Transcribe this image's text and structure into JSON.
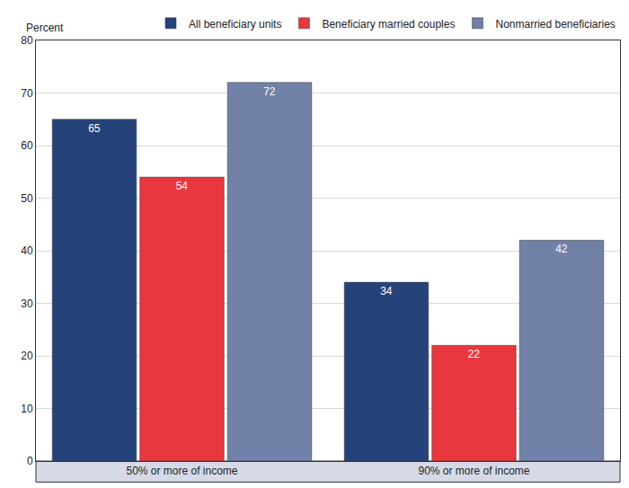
{
  "chart_data": {
    "type": "bar",
    "y_label": "Percent",
    "categories": [
      "50% or more of income",
      "90% or more of income"
    ],
    "series": [
      {
        "name": "All beneficiary units",
        "color": "#25437a",
        "values": [
          65,
          34
        ]
      },
      {
        "name": "Beneficiary married couples",
        "color": "#e8373f",
        "values": [
          54,
          22
        ]
      },
      {
        "name": "Nonmarried beneficiaries",
        "color": "#7181a8",
        "values": [
          72,
          42
        ]
      }
    ],
    "ylim": [
      0,
      80
    ],
    "yticks": [
      0,
      10,
      20,
      30,
      40,
      50,
      60,
      70,
      80
    ],
    "grid": true,
    "legend": "top right",
    "data_labels": true
  }
}
